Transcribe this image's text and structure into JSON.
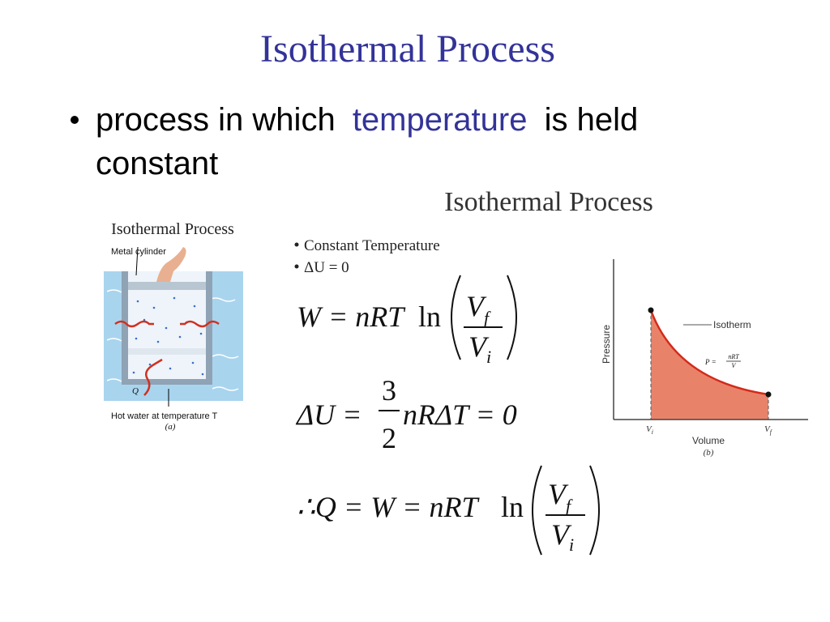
{
  "slide": {
    "title": "Isothermal Process",
    "bullet": {
      "lead": "process in which",
      "key": "temperature",
      "tail": "is held",
      "wrap": "constant"
    }
  },
  "figure_a": {
    "title": "Isothermal Process",
    "label_cylinder": "Metal cylinder",
    "label_heat": "Q",
    "label_water": "Hot water at temperature T",
    "caption": "(a)"
  },
  "panel": {
    "title": "Isothermal Process",
    "points": [
      "Constant Temperature",
      "ΔU = 0"
    ],
    "equations": [
      {
        "lhs": "W = nRT",
        "fn": "ln",
        "num": {
          "base": "V",
          "sub": "f"
        },
        "den": {
          "base": "V",
          "sub": "i"
        }
      },
      {
        "lhs": "ΔU =",
        "num": "3",
        "den": "2",
        "rhs": "nRΔT = 0"
      },
      {
        "lhs": "∴Q = W = nRT",
        "fn": "ln",
        "num": {
          "base": "V",
          "sub": "f"
        },
        "den": {
          "base": "V",
          "sub": "i"
        }
      }
    ]
  },
  "figure_b": {
    "y_label": "Pressure",
    "curve_label": "Isotherm",
    "formula": {
      "lhs": "P =",
      "num": "nRT",
      "den": "V"
    },
    "x_start": {
      "base": "V",
      "sub": "i"
    },
    "x_end": {
      "base": "V",
      "sub": "f"
    },
    "x_label": "Volume",
    "caption": "(b)"
  }
}
